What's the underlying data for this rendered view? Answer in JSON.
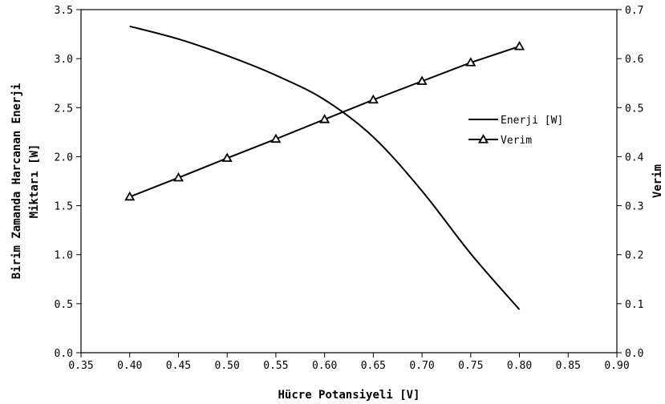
{
  "chart_data": {
    "type": "line",
    "xlabel": "Hücre Potansiyeli [V]",
    "ylabel_left_lines": [
      "Birim Zamanda Harcanan Enerji",
      "Miktarı [W]"
    ],
    "ylabel_right": "Verim",
    "xlim": [
      0.35,
      0.9
    ],
    "ylim_left": [
      0.0,
      3.5
    ],
    "ylim_right": [
      0.0,
      0.7
    ],
    "x_ticks": [
      "0.35",
      "0.40",
      "0.45",
      "0.50",
      "0.55",
      "0.60",
      "0.65",
      "0.70",
      "0.75",
      "0.80",
      "0.85",
      "0.90"
    ],
    "y_left_ticks": [
      "0.0",
      "0.5",
      "1.0",
      "1.5",
      "2.0",
      "2.5",
      "3.0",
      "3.5"
    ],
    "y_right_ticks": [
      "0.0",
      "0.1",
      "0.2",
      "0.3",
      "0.4",
      "0.5",
      "0.6",
      "0.7"
    ],
    "grid": false,
    "legend_position": "right",
    "series": [
      {
        "name": "Enerji [W]",
        "axis": "left",
        "marker": "none",
        "color": "#000000",
        "x": [
          0.4,
          0.45,
          0.5,
          0.55,
          0.6,
          0.65,
          0.7,
          0.75,
          0.8
        ],
        "y": [
          3.33,
          3.2,
          3.03,
          2.83,
          2.58,
          2.2,
          1.65,
          1.01,
          0.44
        ]
      },
      {
        "name": "Verim",
        "axis": "right",
        "marker": "triangle-open",
        "color": "#000000",
        "x": [
          0.4,
          0.45,
          0.5,
          0.55,
          0.6,
          0.65,
          0.7,
          0.75,
          0.8
        ],
        "y": [
          0.318,
          0.357,
          0.397,
          0.436,
          0.476,
          0.516,
          0.554,
          0.592,
          0.625
        ]
      }
    ]
  }
}
